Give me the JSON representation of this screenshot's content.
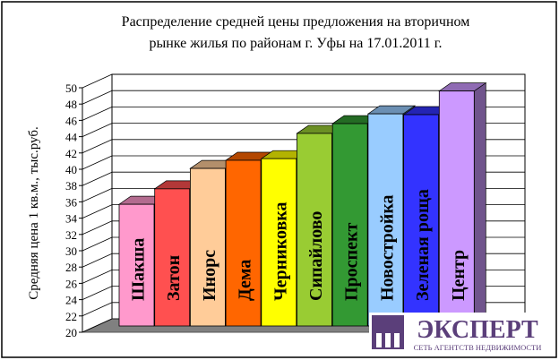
{
  "chart_data": {
    "type": "bar",
    "title_lines": [
      "Распределение средней цены предложения на вторичном",
      "рынке жилья по районам г. Уфы на 17.01.2011 г."
    ],
    "ylabel": "Средняя цена 1 кв.м., тыс.руб.",
    "xlabel": "",
    "ylim": [
      20,
      50
    ],
    "yticks": [
      "20",
      "22",
      "24",
      "26",
      "28",
      "30",
      "32",
      "34",
      "36",
      "38",
      "40",
      "42",
      "44",
      "46",
      "48",
      "50"
    ],
    "grid": true,
    "categories": [
      "Шакша",
      "Затон",
      "Инорс",
      "Дема",
      "Черниковка",
      "Сипайлово",
      "Проспект",
      "Новостройка",
      "Зеленая роща",
      "Центр"
    ],
    "values": [
      35.7,
      37.6,
      40.1,
      41.1,
      41.3,
      44.4,
      45.6,
      46.8,
      46.7,
      49.6
    ],
    "colors": [
      "#ff99cc",
      "#ff5050",
      "#ffcc99",
      "#ff6600",
      "#ffff00",
      "#99cc33",
      "#339933",
      "#99ccff",
      "#3333ff",
      "#cc99ff"
    ]
  },
  "logo": {
    "name": "ЭКСПЕРТ",
    "tagline": "СЕТЬ АГЕНТСТВ НЕДВИЖИМОСТИ",
    "color": "#5b3f7a"
  }
}
